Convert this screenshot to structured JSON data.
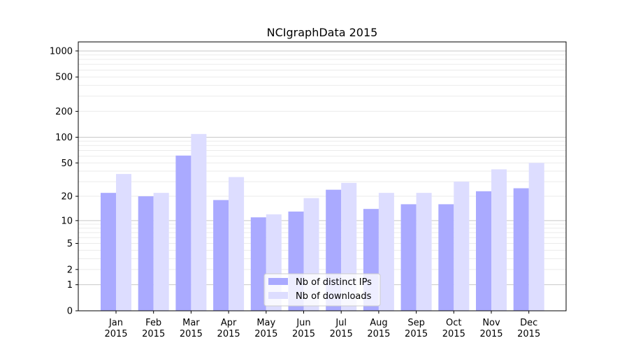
{
  "chart_data": {
    "type": "bar",
    "title": "NCIgraphData 2015",
    "xlabel": "",
    "ylabel": "",
    "yscale": "log(1+y)",
    "ylim": [
      0,
      1200
    ],
    "yticks": [
      0,
      1,
      2,
      5,
      10,
      20,
      50,
      100,
      200,
      500,
      1000
    ],
    "grid": true,
    "legend_position": "lower-center",
    "categories": [
      "Jan\n2015",
      "Feb\n2015",
      "Mar\n2015",
      "Apr\n2015",
      "May\n2015",
      "Jun\n2015",
      "Jul\n2015",
      "Aug\n2015",
      "Sep\n2015",
      "Oct\n2015",
      "Nov\n2015",
      "Dec\n2015"
    ],
    "series": [
      {
        "name": "Nb of distinct IPs",
        "color": "#aaaaff",
        "values": [
          22,
          20,
          61,
          18,
          11,
          13,
          24,
          14,
          16,
          16,
          23,
          25
        ]
      },
      {
        "name": "Nb of downloads",
        "color": "#ddddff",
        "values": [
          37,
          22,
          109,
          34,
          12,
          19,
          29,
          22,
          22,
          30,
          42,
          50
        ]
      }
    ]
  }
}
